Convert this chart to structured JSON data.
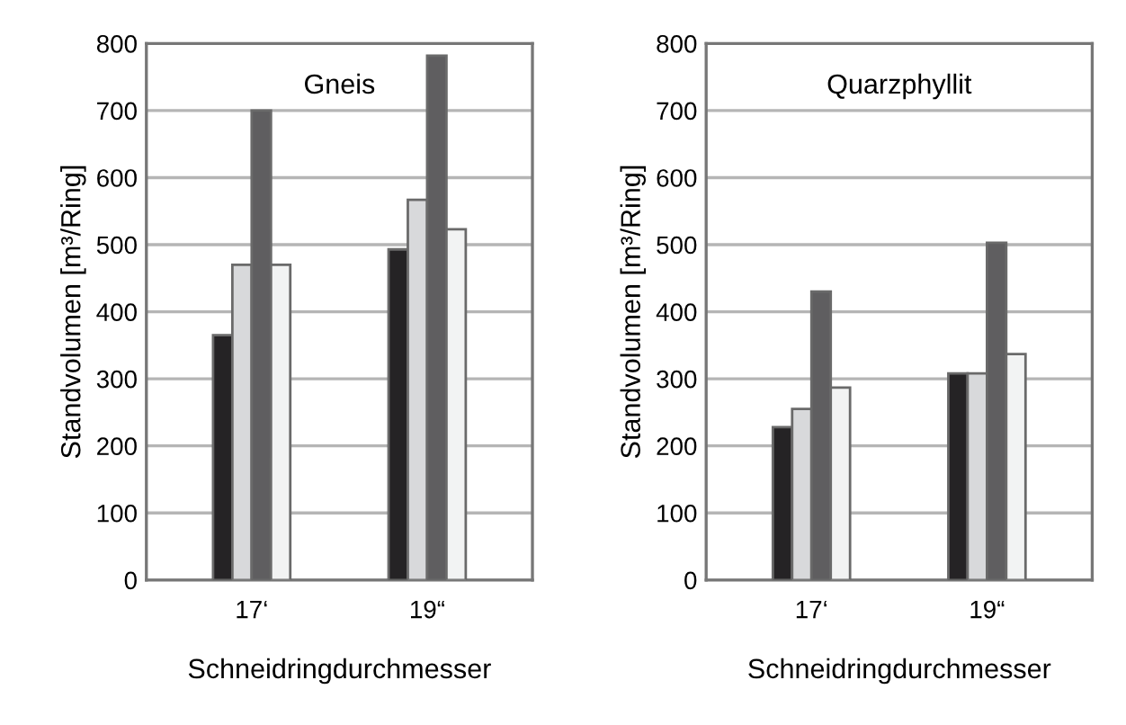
{
  "chart_data": [
    {
      "type": "bar",
      "title": "Gneis",
      "xlabel": "Schneidringdurchmesser",
      "ylabel": "Standvolumen [m³/Ring]",
      "categories": [
        "17‘",
        "19“"
      ],
      "ylim": [
        0,
        800
      ],
      "yticks": [
        0,
        100,
        200,
        300,
        400,
        500,
        600,
        700,
        800
      ],
      "grid": "y",
      "legend": false,
      "series": [
        {
          "color": "#252325",
          "values": [
            365,
            493
          ]
        },
        {
          "color": "#d8d9db",
          "values": [
            470,
            567
          ]
        },
        {
          "color": "#5f5e60",
          "values": [
            700,
            782
          ]
        },
        {
          "color": "#f2f3f3",
          "values": [
            470,
            523
          ]
        }
      ]
    },
    {
      "type": "bar",
      "title": "Quarzphyllit",
      "xlabel": "Schneidringdurchmesser",
      "ylabel": "Standvolumen [m³/Ring]",
      "categories": [
        "17‘",
        "19“"
      ],
      "ylim": [
        0,
        800
      ],
      "yticks": [
        0,
        100,
        200,
        300,
        400,
        500,
        600,
        700,
        800
      ],
      "grid": "y",
      "legend": false,
      "series": [
        {
          "color": "#252325",
          "values": [
            228,
            308
          ]
        },
        {
          "color": "#d8d9db",
          "values": [
            255,
            308
          ]
        },
        {
          "color": "#5f5e60",
          "values": [
            430,
            503
          ]
        },
        {
          "color": "#f2f3f3",
          "values": [
            287,
            337
          ]
        }
      ]
    }
  ]
}
